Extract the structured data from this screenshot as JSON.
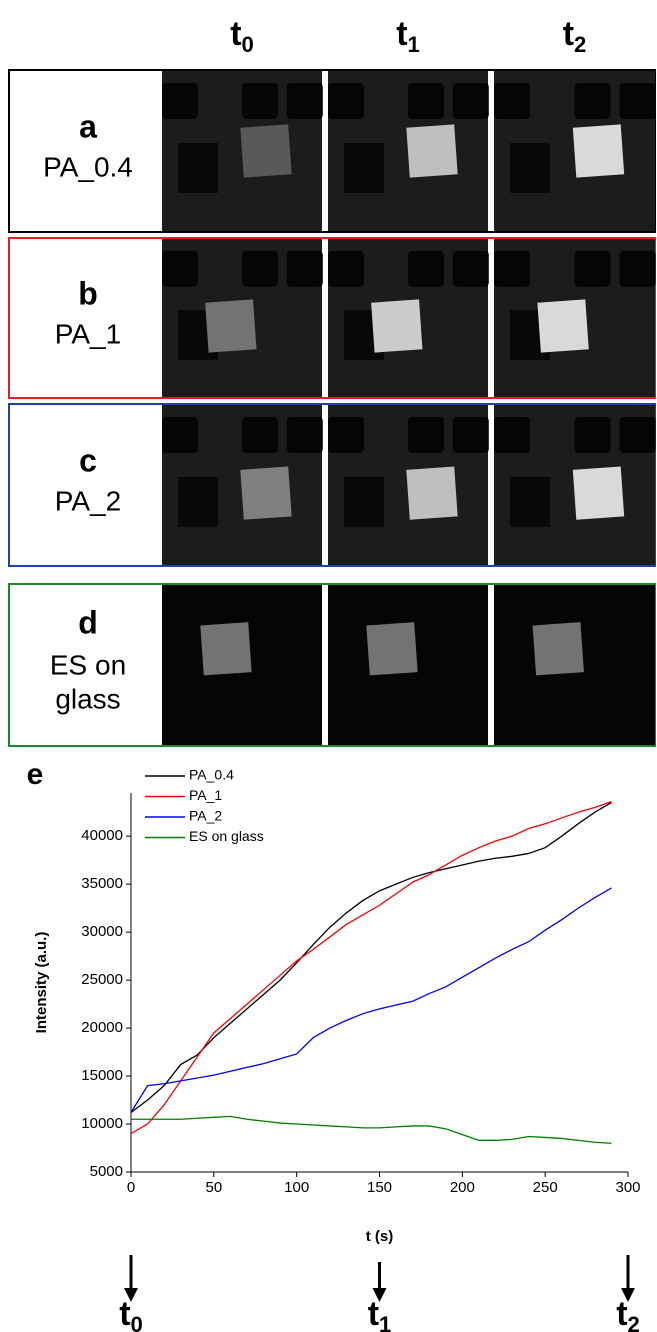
{
  "headers": [
    {
      "t": "t",
      "sub": "0"
    },
    {
      "t": "t",
      "sub": "1"
    },
    {
      "t": "t",
      "sub": "2"
    }
  ],
  "rows": [
    {
      "letter": "a",
      "label": [
        "PA_0.4"
      ],
      "color": "#000000"
    },
    {
      "letter": "b",
      "label": [
        "PA_1"
      ],
      "color": "#e02020"
    },
    {
      "letter": "c",
      "label": [
        "PA_2"
      ],
      "color": "#2040b0"
    },
    {
      "letter": "d",
      "label": [
        "ES on",
        "glass"
      ],
      "color": "#1a8a2a"
    }
  ],
  "chart_data": {
    "type": "line",
    "panel_label": "e",
    "xlabel": "t (s)",
    "ylabel": "Intensity (a.u.)",
    "x": [
      0,
      10,
      20,
      30,
      40,
      50,
      60,
      70,
      80,
      90,
      100,
      110,
      120,
      130,
      140,
      150,
      160,
      170,
      180,
      190,
      200,
      210,
      220,
      230,
      240,
      250,
      260,
      270,
      280,
      290
    ],
    "series": [
      {
        "name": "PA_0.4",
        "color": "#000000",
        "values": [
          11200,
          12500,
          14000,
          16200,
          17200,
          19000,
          20500,
          22000,
          23500,
          25000,
          26800,
          28700,
          30500,
          32000,
          33300,
          34300,
          35000,
          35700,
          36200,
          36600,
          37000,
          37400,
          37700,
          37900,
          38200,
          38800,
          40000,
          41300,
          42500,
          43500
        ]
      },
      {
        "name": "PA_1",
        "color": "#ff0000",
        "values": [
          9000,
          10000,
          12000,
          14500,
          17000,
          19500,
          21000,
          22500,
          24000,
          25500,
          27000,
          28200,
          29500,
          30800,
          31800,
          32800,
          34000,
          35200,
          36000,
          37000,
          38000,
          38800,
          39500,
          40000,
          40800,
          41300,
          41900,
          42500,
          43000,
          43600
        ]
      },
      {
        "name": "PA_2",
        "color": "#0000ff",
        "values": [
          11200,
          14000,
          14200,
          14500,
          14800,
          15100,
          15500,
          15900,
          16300,
          16800,
          17300,
          19000,
          20000,
          20800,
          21500,
          22000,
          22400,
          22800,
          23600,
          24300,
          25300,
          26300,
          27300,
          28200,
          29000,
          30200,
          31300,
          32500,
          33600,
          34600
        ]
      },
      {
        "name": "ES on glass",
        "color": "#008000",
        "values": [
          10500,
          10500,
          10500,
          10500,
          10600,
          10700,
          10800,
          10500,
          10300,
          10100,
          10000,
          9900,
          9800,
          9700,
          9600,
          9600,
          9700,
          9800,
          9800,
          9500,
          8900,
          8300,
          8300,
          8400,
          8700,
          8600,
          8500,
          8300,
          8100,
          8000
        ]
      }
    ],
    "xlim": [
      0,
      300
    ],
    "xticks": [
      0,
      50,
      100,
      150,
      200,
      250,
      300
    ],
    "ylim": [
      5000,
      44500
    ],
    "yticks": [
      5000,
      10000,
      15000,
      20000,
      25000,
      30000,
      35000,
      40000
    ],
    "markers": [
      {
        "x": 0,
        "t": "t",
        "sub": "0"
      },
      {
        "x": 150,
        "t": "t",
        "sub": "1"
      },
      {
        "x": 300,
        "t": "t",
        "sub": "2"
      }
    ]
  }
}
